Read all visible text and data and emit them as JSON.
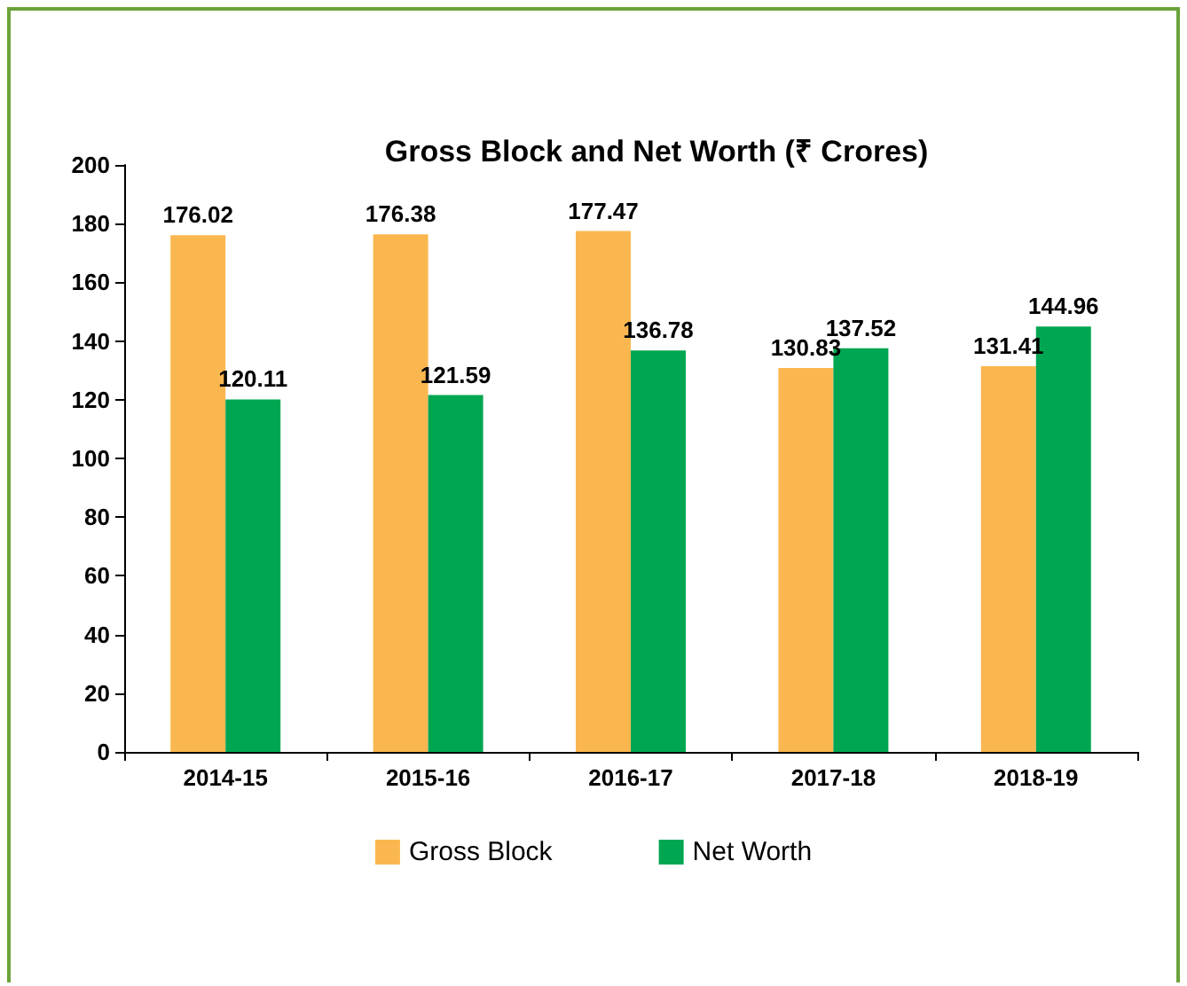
{
  "chart_data": {
    "type": "bar",
    "title": "Gross Block and Net Worth (₹ Crores)",
    "categories": [
      "2014-15",
      "2015-16",
      "2016-17",
      "2017-18",
      "2018-19"
    ],
    "series": [
      {
        "name": "Gross Block",
        "color": "#fbb74f",
        "values": [
          176.02,
          176.38,
          177.47,
          130.83,
          131.41
        ]
      },
      {
        "name": "Net Worth",
        "color": "#00a651",
        "values": [
          120.11,
          121.59,
          136.78,
          137.52,
          144.96
        ]
      }
    ],
    "ylim": [
      0,
      200
    ],
    "yticks": [
      0,
      20,
      40,
      60,
      80,
      100,
      120,
      140,
      160,
      180,
      200
    ],
    "grid": false,
    "legend": "bottom",
    "data_labels": true
  }
}
